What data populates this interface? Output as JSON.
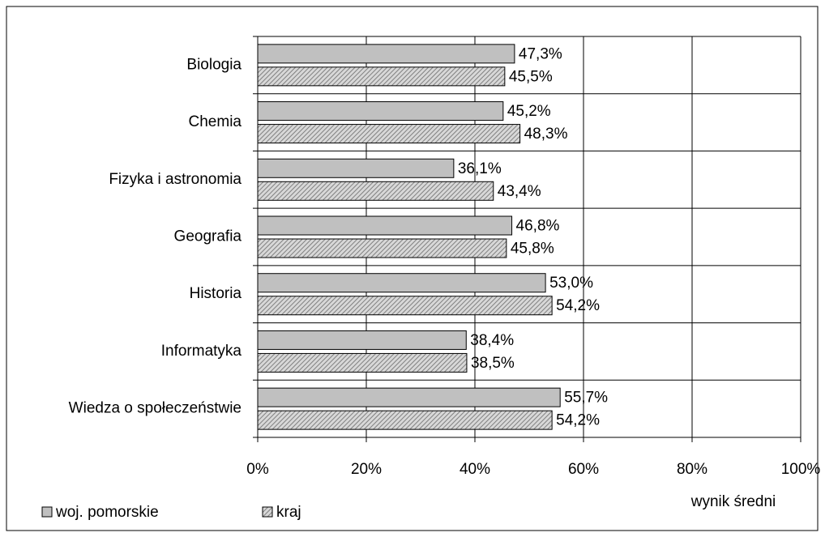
{
  "chart_data": {
    "type": "bar",
    "orientation": "horizontal",
    "x_label": "wynik średni",
    "categories": [
      "Biologia",
      "Chemia",
      "Fizyka i astronomia",
      "Geografia",
      "Historia",
      "Informatyka",
      "Wiedza o społeczeństwie"
    ],
    "series": [
      {
        "name": "woj. pomorskie",
        "color": "#c0c0c0",
        "hatch": false,
        "values": [
          47.3,
          45.2,
          36.1,
          46.8,
          53.0,
          38.4,
          55.7
        ],
        "value_labels": [
          "47,3%",
          "45,2%",
          "36,1%",
          "46,8%",
          "53,0%",
          "38,4%",
          "55,7%"
        ]
      },
      {
        "name": "kraj",
        "color": "#808080",
        "hatch": true,
        "values": [
          45.5,
          48.3,
          43.4,
          45.8,
          54.2,
          38.5,
          54.2
        ],
        "value_labels": [
          "45,5%",
          "48,3%",
          "43,4%",
          "45,8%",
          "54,2%",
          "38,5%",
          "54,2%"
        ]
      }
    ],
    "xlim": [
      0,
      100
    ],
    "xticks": [
      {
        "value": 0,
        "label": "0%"
      },
      {
        "value": 20,
        "label": "20%"
      },
      {
        "value": 40,
        "label": "40%"
      },
      {
        "value": 60,
        "label": "60%"
      },
      {
        "value": 80,
        "label": "80%"
      },
      {
        "value": 100,
        "label": "100%"
      }
    ],
    "grid": true
  }
}
